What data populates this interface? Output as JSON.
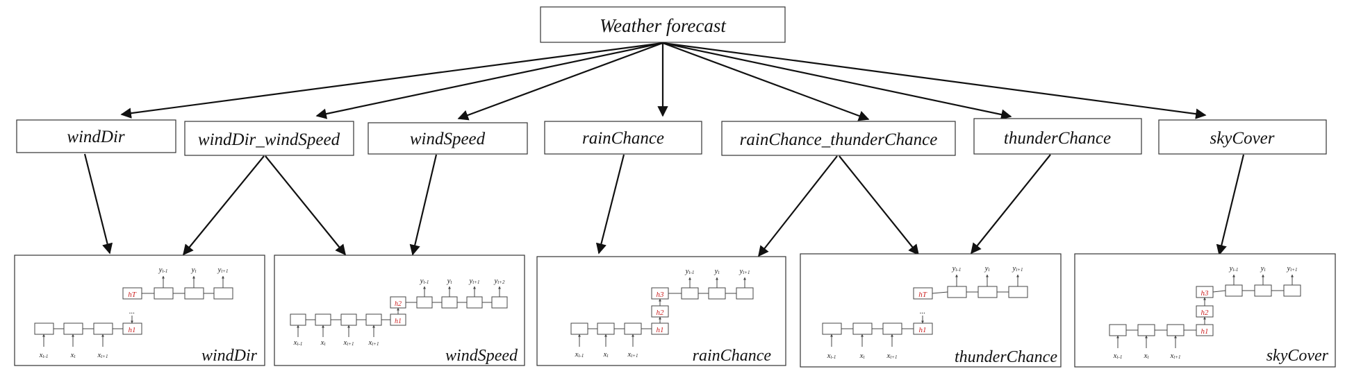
{
  "root": {
    "label": "Weather forecast"
  },
  "tasks": [
    {
      "label": "windDir"
    },
    {
      "label": "windDir_windSpeed"
    },
    {
      "label": "windSpeed"
    },
    {
      "label": "rainChance"
    },
    {
      "label": "rainChance_thunderChance"
    },
    {
      "label": "thunderChance"
    },
    {
      "label": "skyCover"
    }
  ],
  "models": [
    {
      "label": "windDir",
      "inputs": [
        "x",
        "x",
        "x"
      ],
      "input_subs": [
        "t-1",
        "t",
        "t+1"
      ],
      "hidden": [
        "hT",
        "h1"
      ],
      "outputs": [
        "y",
        "y",
        "y"
      ],
      "output_subs": [
        "t-1",
        "t",
        "t+1"
      ],
      "dots": "..."
    },
    {
      "label": "windSpeed",
      "inputs": [
        "x",
        "x",
        "x",
        "x"
      ],
      "input_subs": [
        "t-1",
        "t",
        "t+1",
        "t+1"
      ],
      "hidden": [
        "h2",
        "h1"
      ],
      "outputs": [
        "y",
        "y",
        "y",
        "y"
      ],
      "output_subs": [
        "t-1",
        "t",
        "t+1",
        "t+2"
      ]
    },
    {
      "label": "rainChance",
      "inputs": [
        "x",
        "x",
        "x"
      ],
      "input_subs": [
        "t-1",
        "t",
        "t+1"
      ],
      "hidden": [
        "h3",
        "h2",
        "h1"
      ],
      "outputs": [
        "y",
        "y",
        "y"
      ],
      "output_subs": [
        "t-1",
        "t",
        "t+1"
      ]
    },
    {
      "label": "thunderChance",
      "inputs": [
        "x",
        "x",
        "x"
      ],
      "input_subs": [
        "t-1",
        "t",
        "t+1"
      ],
      "hidden": [
        "hT",
        "h1"
      ],
      "outputs": [
        "y",
        "y",
        "y"
      ],
      "output_subs": [
        "t-1",
        "t",
        "t+1"
      ],
      "dots": "..."
    },
    {
      "label": "skyCover",
      "inputs": [
        "x",
        "x",
        "x"
      ],
      "input_subs": [
        "t-1",
        "t",
        "t+1"
      ],
      "hidden": [
        "h3",
        "h2",
        "h1"
      ],
      "outputs": [
        "y",
        "y",
        "y"
      ],
      "output_subs": [
        "t-1",
        "t",
        "t+1"
      ]
    }
  ]
}
